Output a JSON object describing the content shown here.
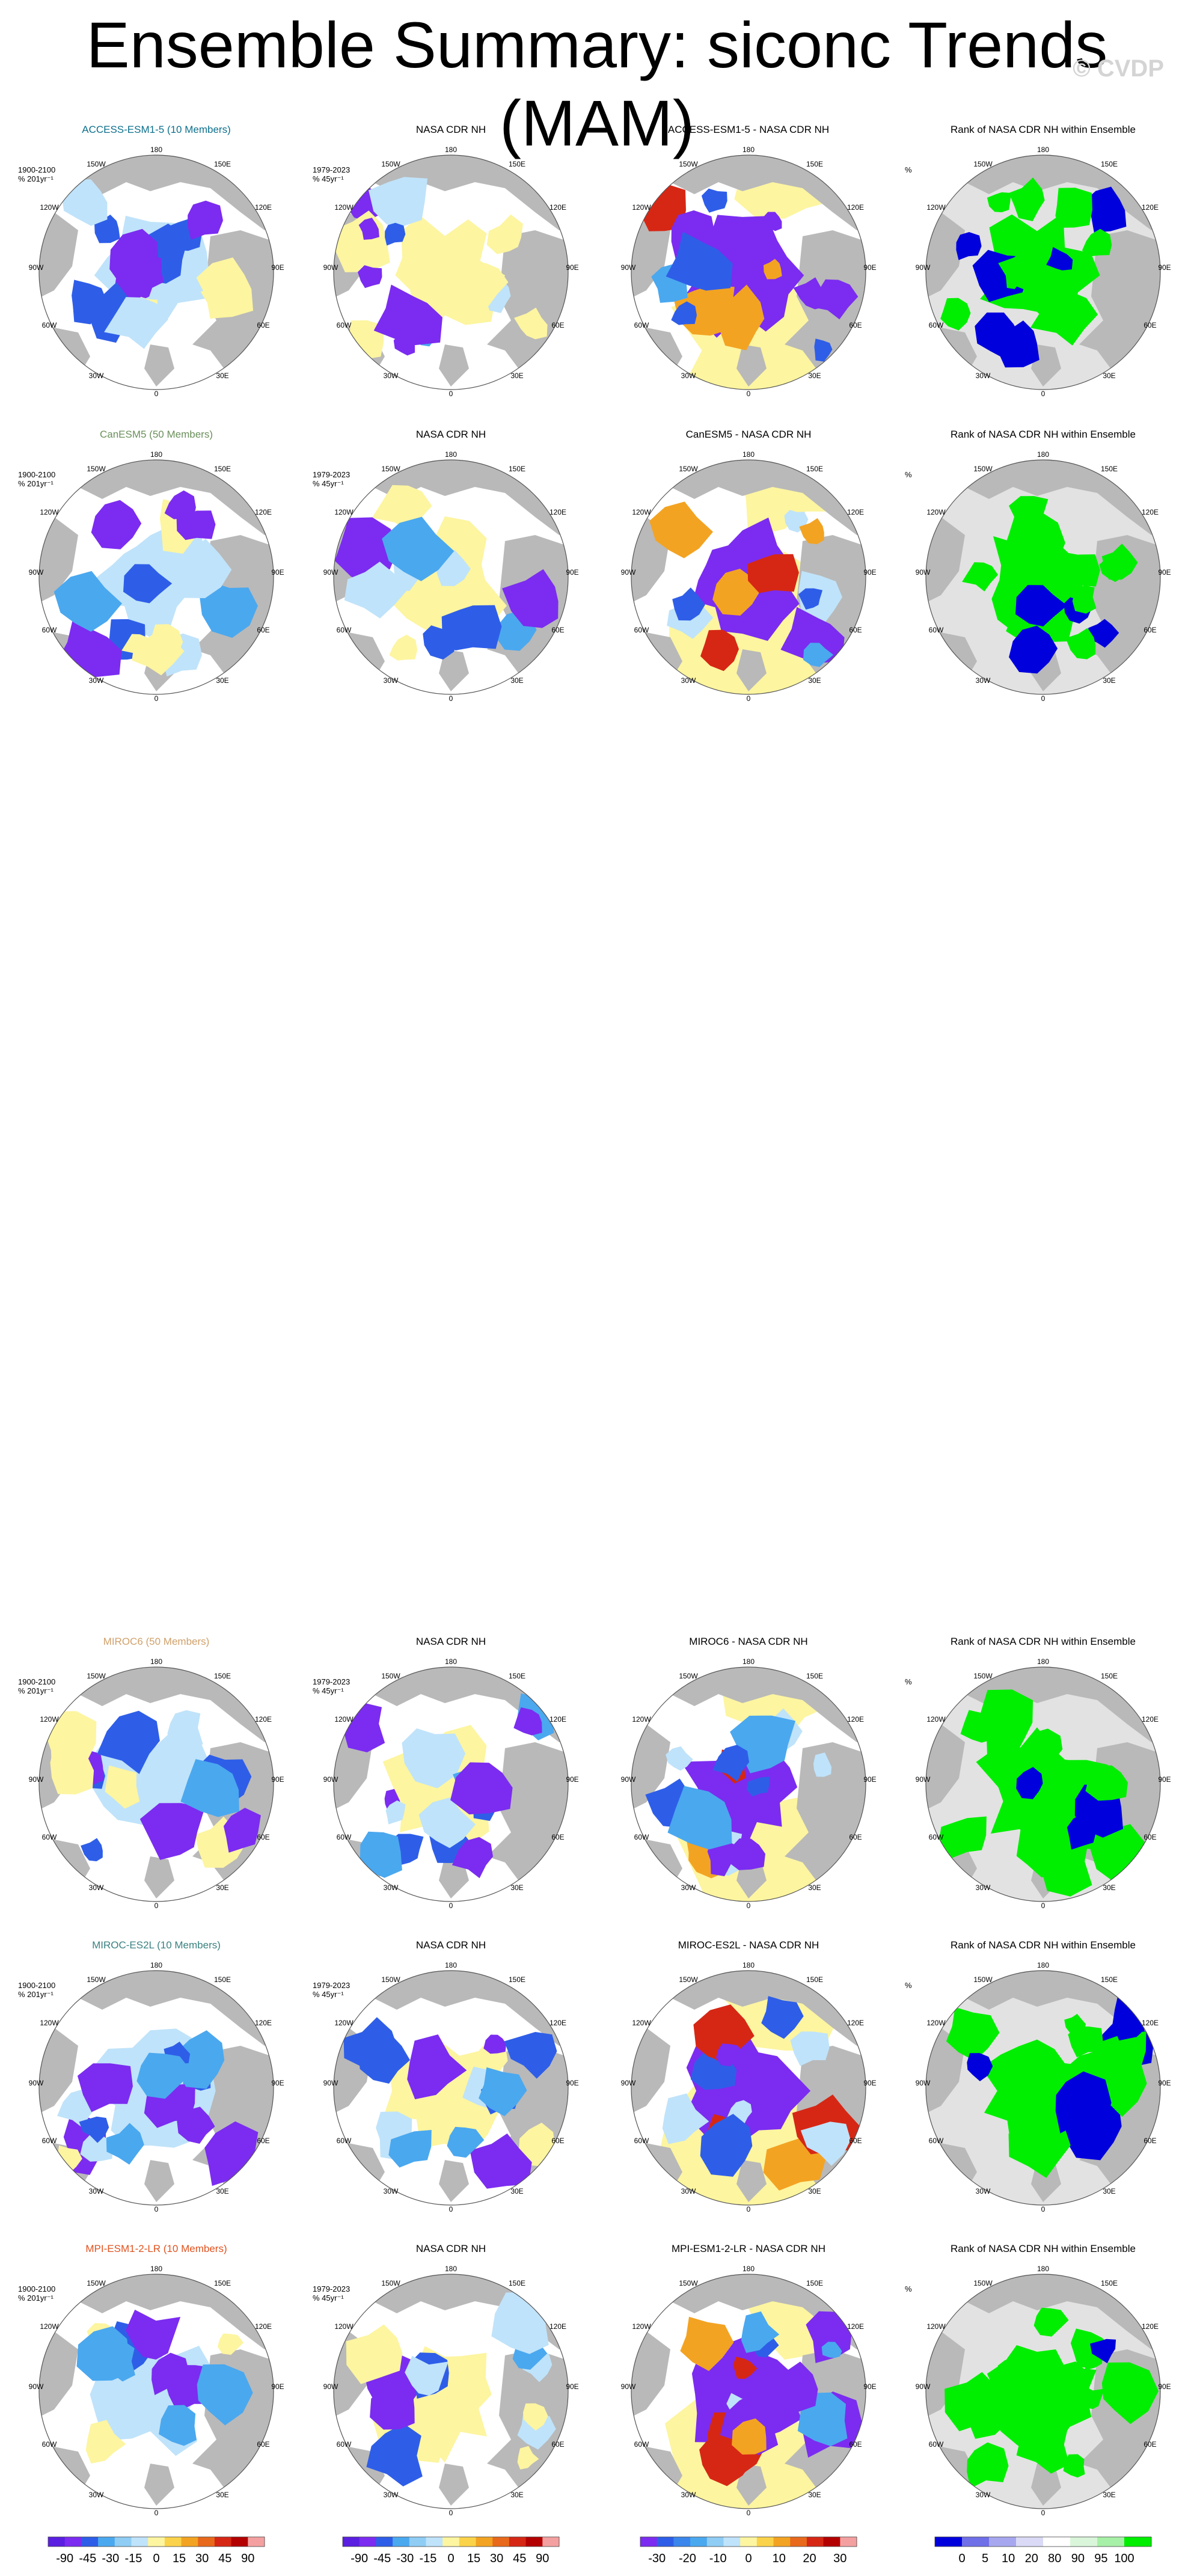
{
  "title": "Ensemble Summary: siconc Trends (MAM)",
  "watermark": "© CVDP",
  "colors": {
    "land": "#b9b9b9",
    "ocean": "#ffffff",
    "title_access": "#0b6f8c",
    "title_canesm": "#6a8f5b",
    "title_miroc6": "#d0a06a",
    "title_mirocesl": "#3a8080",
    "title_mpi": "#e0521f",
    "neg_strong": "#7b2cf0",
    "neg_mid": "#2e5ee8",
    "neg_light": "#4aa8ef",
    "neg_pale": "#bfe3fa",
    "pos_pale": "#fdf5a0",
    "pos_mid": "#f3a322",
    "pos_strong": "#d62715",
    "rank_green": "#00ee00",
    "rank_blue": "#0000dd",
    "rank_grey": "#e2e2e2"
  },
  "map_labels": {
    "lon": [
      "180",
      "150W",
      "150E",
      "120W",
      "120E",
      "90W",
      "90E",
      "60W",
      "60E",
      "30W",
      "30E",
      "0"
    ]
  },
  "rows": [
    {
      "panels": [
        {
          "title": "ACCESS-ESM1-5 (10 Members)",
          "title_color": "#0b6f8c",
          "sub1": "1900-2100",
          "sub2": "% 201yr⁻¹",
          "kind": "model"
        },
        {
          "title": "NASA CDR NH",
          "title_color": "#000",
          "sub1": "1979-2023",
          "sub2": "% 45yr⁻¹",
          "kind": "obs"
        },
        {
          "title": "ACCESS-ESM1-5 - NASA CDR NH",
          "title_color": "#000",
          "sub1": "",
          "sub2": "",
          "kind": "diff"
        },
        {
          "title": "Rank of NASA CDR NH within Ensemble",
          "title_color": "#000",
          "sub1": "%",
          "sub2": "",
          "kind": "rank"
        }
      ]
    },
    {
      "panels": [
        {
          "title": "CanESM5 (50 Members)",
          "title_color": "#6a8f5b",
          "sub1": "1900-2100",
          "sub2": "% 201yr⁻¹",
          "kind": "model"
        },
        {
          "title": "NASA CDR NH",
          "title_color": "#000",
          "sub1": "1979-2023",
          "sub2": "% 45yr⁻¹",
          "kind": "obs"
        },
        {
          "title": "CanESM5 - NASA CDR NH",
          "title_color": "#000",
          "sub1": "",
          "sub2": "",
          "kind": "diff"
        },
        {
          "title": "Rank of NASA CDR NH within Ensemble",
          "title_color": "#000",
          "sub1": "%",
          "sub2": "",
          "kind": "rank"
        }
      ]
    },
    {
      "panels": [
        {
          "title": "MIROC6 (50 Members)",
          "title_color": "#d0a06a",
          "sub1": "1900-2100",
          "sub2": "% 201yr⁻¹",
          "kind": "model"
        },
        {
          "title": "NASA CDR NH",
          "title_color": "#000",
          "sub1": "1979-2023",
          "sub2": "% 45yr⁻¹",
          "kind": "obs"
        },
        {
          "title": "MIROC6 - NASA CDR NH",
          "title_color": "#000",
          "sub1": "",
          "sub2": "",
          "kind": "diff"
        },
        {
          "title": "Rank of NASA CDR NH within Ensemble",
          "title_color": "#000",
          "sub1": "%",
          "sub2": "",
          "kind": "rank"
        }
      ]
    },
    {
      "panels": [
        {
          "title": "MIROC-ES2L (10 Members)",
          "title_color": "#3a8080",
          "sub1": "1900-2100",
          "sub2": "% 201yr⁻¹",
          "kind": "model"
        },
        {
          "title": "NASA CDR NH",
          "title_color": "#000",
          "sub1": "1979-2023",
          "sub2": "% 45yr⁻¹",
          "kind": "obs"
        },
        {
          "title": "MIROC-ES2L - NASA CDR NH",
          "title_color": "#000",
          "sub1": "",
          "sub2": "",
          "kind": "diff"
        },
        {
          "title": "Rank of NASA CDR NH within Ensemble",
          "title_color": "#000",
          "sub1": "%",
          "sub2": "",
          "kind": "rank"
        }
      ]
    },
    {
      "panels": [
        {
          "title": "MPI-ESM1-2-LR (10 Members)",
          "title_color": "#e0521f",
          "sub1": "1900-2100",
          "sub2": "% 201yr⁻¹",
          "kind": "model"
        },
        {
          "title": "NASA CDR NH",
          "title_color": "#000",
          "sub1": "1979-2023",
          "sub2": "% 45yr⁻¹",
          "kind": "obs"
        },
        {
          "title": "MPI-ESM1-2-LR - NASA CDR NH",
          "title_color": "#000",
          "sub1": "",
          "sub2": "",
          "kind": "diff"
        },
        {
          "title": "Rank of NASA CDR NH within Ensemble",
          "title_color": "#000",
          "sub1": "%",
          "sub2": "",
          "kind": "rank"
        }
      ]
    }
  ],
  "chart_data": [
    {
      "type": "heatmap",
      "title": "Ensemble Summary: siconc Trends (MAM)",
      "description_of_grid": "5 rows (models) x 4 columns (model trend, observed trend, difference, rank) polar stereographic maps of the Northern Hemisphere",
      "colorbars": [
        {
          "name": "trend",
          "ticks": [
            "-90",
            "-45",
            "-30",
            "-15",
            "0",
            "15",
            "30",
            "45",
            "90"
          ],
          "colors": [
            "#5a1fe0",
            "#7b2cf0",
            "#2e5ee8",
            "#4aa8ef",
            "#8fcdf5",
            "#bfe3fa",
            "#fdf5a0",
            "#fbd34a",
            "#f3a322",
            "#e8691b",
            "#d62715",
            "#b30000",
            "#f4a0a0"
          ]
        },
        {
          "name": "trend_obs",
          "ticks": [
            "-90",
            "-45",
            "-30",
            "-15",
            "0",
            "15",
            "30",
            "45",
            "90"
          ],
          "colors": [
            "#5a1fe0",
            "#7b2cf0",
            "#2e5ee8",
            "#4aa8ef",
            "#8fcdf5",
            "#bfe3fa",
            "#fdf5a0",
            "#fbd34a",
            "#f3a322",
            "#e8691b",
            "#d62715",
            "#b30000",
            "#f4a0a0"
          ]
        },
        {
          "name": "difference",
          "ticks": [
            "-30",
            "-20",
            "-10",
            "0",
            "10",
            "20",
            "30"
          ],
          "colors": [
            "#7b2cf0",
            "#2e5ee8",
            "#3b86ec",
            "#4aa8ef",
            "#8fcdf5",
            "#bfe3fa",
            "#fdf5a0",
            "#fbd34a",
            "#f3a322",
            "#e8691b",
            "#d62715",
            "#b30000",
            "#f4a0a0"
          ]
        },
        {
          "name": "rank",
          "ticks": [
            "0",
            "5",
            "10",
            "20",
            "80",
            "90",
            "95",
            "100"
          ],
          "colors": [
            "#0000dd",
            "#6f6fe8",
            "#a7a7f0",
            "#dadaf6",
            "#ffffff",
            "#daf6da",
            "#a7f0a7",
            "#00ee00"
          ]
        }
      ]
    }
  ]
}
